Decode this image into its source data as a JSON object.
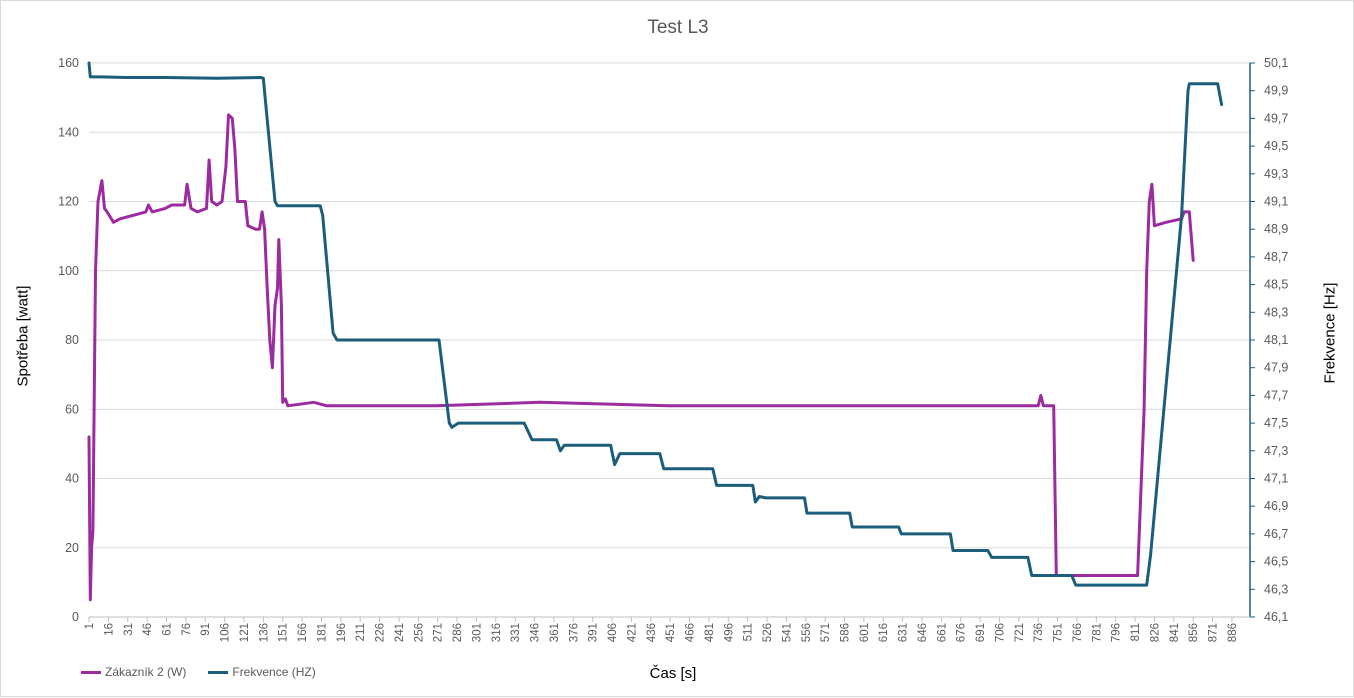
{
  "chart_data": {
    "type": "line",
    "title": "Test L3",
    "xlabel": "Čas [s]",
    "ylabel": "Spotřeba [watt]",
    "y2label": "Frekvence [Hz]",
    "ylim": [
      0,
      160
    ],
    "y2lim": [
      46.1,
      50.1
    ],
    "yticks": [
      "0",
      "20",
      "40",
      "60",
      "80",
      "100",
      "120",
      "140",
      "160"
    ],
    "y2ticks": [
      "46,1",
      "46,3",
      "46,5",
      "46,7",
      "46,9",
      "47,1",
      "47,3",
      "47,5",
      "47,7",
      "47,9",
      "48,1",
      "48,3",
      "48,5",
      "48,7",
      "48,9",
      "49,1",
      "49,3",
      "49,5",
      "49,7",
      "49,9",
      "50,1"
    ],
    "xticks": [
      "1",
      "16",
      "31",
      "46",
      "61",
      "76",
      "91",
      "106",
      "121",
      "136",
      "151",
      "166",
      "181",
      "196",
      "211",
      "226",
      "241",
      "256",
      "271",
      "286",
      "301",
      "316",
      "331",
      "346",
      "361",
      "376",
      "391",
      "406",
      "421",
      "436",
      "451",
      "466",
      "481",
      "496",
      "511",
      "526",
      "541",
      "556",
      "571",
      "586",
      "601",
      "616",
      "631",
      "646",
      "661",
      "676",
      "691",
      "706",
      "721",
      "736",
      "751",
      "766",
      "781",
      "796",
      "811",
      "826",
      "841",
      "856",
      "871",
      "886"
    ],
    "xlim": [
      1,
      900
    ],
    "grid": true,
    "legend_position": "bottom-left",
    "series": [
      {
        "name": "Zákazník 2 (W)",
        "axis": "left",
        "color": "#9C2B9F",
        "points": [
          [
            1,
            52
          ],
          [
            2,
            5
          ],
          [
            3,
            20
          ],
          [
            4,
            25
          ],
          [
            6,
            100
          ],
          [
            8,
            120
          ],
          [
            11,
            126
          ],
          [
            13,
            118
          ],
          [
            15,
            117
          ],
          [
            20,
            114
          ],
          [
            25,
            115
          ],
          [
            35,
            116
          ],
          [
            45,
            117
          ],
          [
            47,
            119
          ],
          [
            50,
            117
          ],
          [
            60,
            118
          ],
          [
            65,
            119
          ],
          [
            75,
            119
          ],
          [
            77,
            125
          ],
          [
            80,
            118
          ],
          [
            85,
            117
          ],
          [
            92,
            118
          ],
          [
            94,
            132
          ],
          [
            96,
            120
          ],
          [
            100,
            119
          ],
          [
            104,
            120
          ],
          [
            107,
            130
          ],
          [
            109,
            145
          ],
          [
            112,
            144
          ],
          [
            114,
            135
          ],
          [
            116,
            120
          ],
          [
            122,
            120
          ],
          [
            124,
            113
          ],
          [
            130,
            112
          ],
          [
            133,
            112
          ],
          [
            135,
            117
          ],
          [
            137,
            112
          ],
          [
            139,
            95
          ],
          [
            141,
            80
          ],
          [
            143,
            72
          ],
          [
            145,
            90
          ],
          [
            147,
            95
          ],
          [
            148,
            109
          ],
          [
            150,
            90
          ],
          [
            151,
            62
          ],
          [
            153,
            63
          ],
          [
            155,
            61
          ],
          [
            175,
            62
          ],
          [
            185,
            61
          ],
          [
            270,
            61
          ],
          [
            350,
            62
          ],
          [
            450,
            61
          ],
          [
            600,
            61
          ],
          [
            700,
            61
          ],
          [
            736,
            61
          ],
          [
            738,
            64
          ],
          [
            740,
            61
          ],
          [
            748,
            61
          ],
          [
            750,
            12
          ],
          [
            752,
            12
          ],
          [
            780,
            12
          ],
          [
            813,
            12
          ],
          [
            818,
            60
          ],
          [
            820,
            100
          ],
          [
            822,
            120
          ],
          [
            824,
            125
          ],
          [
            826,
            113
          ],
          [
            835,
            114
          ],
          [
            847,
            115
          ],
          [
            849,
            117
          ],
          [
            853,
            117
          ],
          [
            856,
            103
          ]
        ]
      },
      {
        "name": "Frekvence (HZ)",
        "axis": "right",
        "color": "#1B5D7A",
        "points": [
          [
            1,
            50.1
          ],
          [
            2,
            50.0
          ],
          [
            10,
            50.0
          ],
          [
            30,
            49.995
          ],
          [
            60,
            49.995
          ],
          [
            100,
            49.99
          ],
          [
            134,
            49.995
          ],
          [
            136,
            49.99
          ],
          [
            145,
            49.1
          ],
          [
            147,
            49.07
          ],
          [
            180,
            49.07
          ],
          [
            182,
            49.0
          ],
          [
            190,
            48.15
          ],
          [
            193,
            48.1
          ],
          [
            272,
            48.1
          ],
          [
            280,
            47.5
          ],
          [
            282,
            47.47
          ],
          [
            287,
            47.5
          ],
          [
            338,
            47.5
          ],
          [
            344,
            47.38
          ],
          [
            363,
            47.38
          ],
          [
            366,
            47.3
          ],
          [
            369,
            47.34
          ],
          [
            405,
            47.34
          ],
          [
            408,
            47.2
          ],
          [
            412,
            47.28
          ],
          [
            443,
            47.28
          ],
          [
            446,
            47.17
          ],
          [
            484,
            47.17
          ],
          [
            487,
            47.05
          ],
          [
            515,
            47.05
          ],
          [
            517,
            46.93
          ],
          [
            520,
            46.97
          ],
          [
            525,
            46.96
          ],
          [
            555,
            46.96
          ],
          [
            557,
            46.85
          ],
          [
            590,
            46.85
          ],
          [
            592,
            46.75
          ],
          [
            628,
            46.75
          ],
          [
            630,
            46.7
          ],
          [
            668,
            46.7
          ],
          [
            670,
            46.58
          ],
          [
            697,
            46.58
          ],
          [
            700,
            46.53
          ],
          [
            728,
            46.53
          ],
          [
            731,
            46.4
          ],
          [
            762,
            46.4
          ],
          [
            765,
            46.33
          ],
          [
            820,
            46.33
          ],
          [
            823,
            46.55
          ],
          [
            847,
            49.0
          ],
          [
            852,
            49.9
          ],
          [
            853,
            49.95
          ],
          [
            875,
            49.95
          ],
          [
            878,
            49.8
          ]
        ]
      }
    ]
  }
}
